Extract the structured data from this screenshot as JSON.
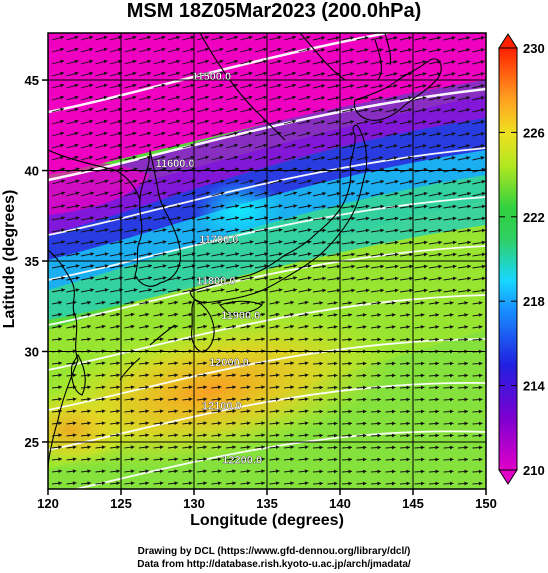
{
  "title": "MSM 18Z05Mar2023 (200.0hPa)",
  "xaxis": {
    "label": "Longitude (degrees)",
    "range": [
      120,
      150
    ],
    "ticks": [
      120,
      125,
      130,
      135,
      140,
      145,
      150
    ]
  },
  "yaxis": {
    "label": "Latitude  (degrees)",
    "range": [
      22.4,
      47.6
    ],
    "ticks": [
      25,
      30,
      35,
      40,
      45
    ]
  },
  "colorbar": {
    "range": [
      210,
      230
    ],
    "ticks": [
      210,
      214,
      218,
      222,
      226,
      230
    ],
    "colors": [
      "#e000c8",
      "#2020e0",
      "#18c8ff",
      "#30d040",
      "#e0f020",
      "#ffa020",
      "#ff2000"
    ]
  },
  "contour_labels": [
    {
      "text": "11500.0",
      "lon": 131.2,
      "lat": 45.0
    },
    {
      "text": "11600.0",
      "lon": 128.7,
      "lat": 40.2
    },
    {
      "text": "11700.0",
      "lon": 131.7,
      "lat": 36.0
    },
    {
      "text": "11800.0",
      "lon": 131.5,
      "lat": 33.7
    },
    {
      "text": "11900.0",
      "lon": 133.2,
      "lat": 31.8
    },
    {
      "text": "12000.0",
      "lon": 132.4,
      "lat": 29.2
    },
    {
      "text": "12100.0",
      "lon": 131.9,
      "lat": 26.8
    },
    {
      "text": "12200.0",
      "lon": 133.3,
      "lat": 23.8
    }
  ],
  "footer": {
    "line1": "Drawing by DCL (https://www.gfd-dennou.org/library/dcl/)",
    "line2": "Data from http://database.rish.kyoto-u.ac.jp/arch/jmadata/"
  }
}
